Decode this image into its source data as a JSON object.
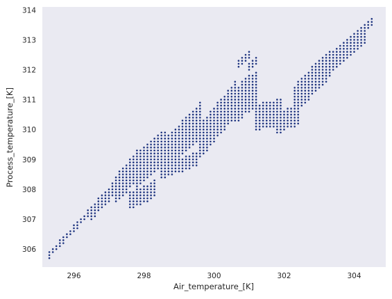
{
  "chart_data": {
    "type": "scatter",
    "title": "",
    "xlabel": "Air_temperature_[K]",
    "ylabel": "Process_temperature_[K]",
    "xlim": [
      295.1,
      304.9
    ],
    "ylim": [
      305.4,
      314.1
    ],
    "xticks": [
      296,
      298,
      300,
      302,
      304
    ],
    "yticks": [
      306,
      307,
      308,
      309,
      310,
      311,
      312,
      313,
      314
    ],
    "grid": false,
    "legend": "none",
    "colors": {
      "plot_background": "#eaeaf2",
      "marker": "#1f3580"
    },
    "grid_step": {
      "x": 0.1,
      "y": 0.1
    },
    "series": [
      {
        "regions": [
          {
            "x0": 295.3,
            "x1": 296.5,
            "yc0": 305.8,
            "yc1": 307.3,
            "h": 0.15
          },
          {
            "x0": 296.5,
            "x1": 297.2,
            "yc0": 307.2,
            "yc1": 308.1,
            "h": 0.4
          },
          {
            "x0": 297.2,
            "x1": 297.8,
            "yc0": 308.0,
            "yc1": 308.8,
            "h": 0.9
          },
          {
            "x0": 297.8,
            "x1": 298.6,
            "yc0": 308.7,
            "yc1": 309.4,
            "h": 1.1
          },
          {
            "x0": 297.6,
            "x1": 298.3,
            "yc0": 307.6,
            "yc1": 308.0,
            "h": 0.5
          },
          {
            "x0": 298.6,
            "x1": 299.6,
            "yc0": 309.1,
            "yc1": 310.3,
            "h": 1.1
          },
          {
            "x0": 298.5,
            "x1": 299.5,
            "yc0": 308.6,
            "yc1": 309.0,
            "h": 0.4
          },
          {
            "x0": 299.6,
            "x1": 300.6,
            "yc0": 309.6,
            "yc1": 311.0,
            "h": 1.1
          },
          {
            "x0": 300.6,
            "x1": 301.2,
            "yc0": 310.8,
            "yc1": 311.4,
            "h": 1.1
          },
          {
            "x0": 300.7,
            "x1": 301.0,
            "yc0": 312.2,
            "yc1": 312.5,
            "h": 0.25
          },
          {
            "x0": 301.0,
            "x1": 301.2,
            "yc0": 312.1,
            "yc1": 312.3,
            "h": 0.15
          },
          {
            "x0": 301.2,
            "x1": 301.9,
            "yc0": 310.4,
            "yc1": 310.6,
            "h": 0.8
          },
          {
            "x0": 301.8,
            "x1": 302.4,
            "yc0": 310.2,
            "yc1": 310.5,
            "h": 0.6
          },
          {
            "x0": 302.3,
            "x1": 303.3,
            "yc0": 311.0,
            "yc1": 312.2,
            "h": 0.9
          },
          {
            "x0": 303.2,
            "x1": 304.3,
            "yc0": 312.1,
            "yc1": 313.2,
            "h": 0.65
          },
          {
            "x0": 304.2,
            "x1": 304.5,
            "yc0": 313.3,
            "yc1": 313.6,
            "h": 0.15
          }
        ]
      }
    ]
  }
}
